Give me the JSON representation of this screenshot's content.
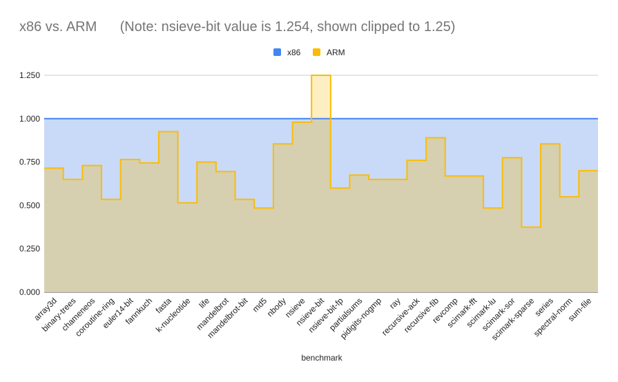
{
  "chart_data": {
    "type": "area",
    "title": "x86 vs. ARM      (Note: nsieve-bit value is 1.254, shown clipped to 1.25)",
    "xlabel": "benchmark",
    "ylabel": "",
    "ylim": [
      0,
      1.25
    ],
    "yticks": [
      "0.000",
      "0.250",
      "0.500",
      "0.750",
      "1.000",
      "1.250"
    ],
    "grid": true,
    "legend_position": "top-center",
    "categories": [
      "array3d",
      "binary-trees",
      "chameneos",
      "coroutine-ring",
      "euler14-bit",
      "fannkuch",
      "fasta",
      "k-nucleotide",
      "life",
      "mandelbrot",
      "mandelbrot-bit",
      "md5",
      "nbody",
      "nsieve",
      "nsieve-bit",
      "nsieve-bit-fp",
      "partialsums",
      "pidigits-nogmp",
      "ray",
      "recursive-ack",
      "recursive-fib",
      "revcomp",
      "scimark-fft",
      "scimark-lu",
      "scimark-sor",
      "scimark-sparse",
      "series",
      "spectral-norm",
      "sum-file"
    ],
    "series": [
      {
        "name": "x86",
        "color": "#4285f4",
        "fill": "#c9daf8",
        "values": [
          1,
          1,
          1,
          1,
          1,
          1,
          1,
          1,
          1,
          1,
          1,
          1,
          1,
          1,
          1,
          1,
          1,
          1,
          1,
          1,
          1,
          1,
          1,
          1,
          1,
          1,
          1,
          1,
          1
        ]
      },
      {
        "name": "ARM",
        "color": "#fbbc04",
        "fill": "#d6d0b1",
        "values": [
          0.715,
          0.65,
          0.73,
          0.535,
          0.765,
          0.745,
          0.925,
          0.515,
          0.75,
          0.695,
          0.535,
          0.485,
          0.855,
          0.98,
          1.25,
          0.6,
          0.675,
          0.65,
          0.65,
          0.76,
          0.89,
          0.67,
          0.67,
          0.485,
          0.775,
          0.375,
          0.855,
          0.55,
          0.7
        ]
      }
    ]
  }
}
